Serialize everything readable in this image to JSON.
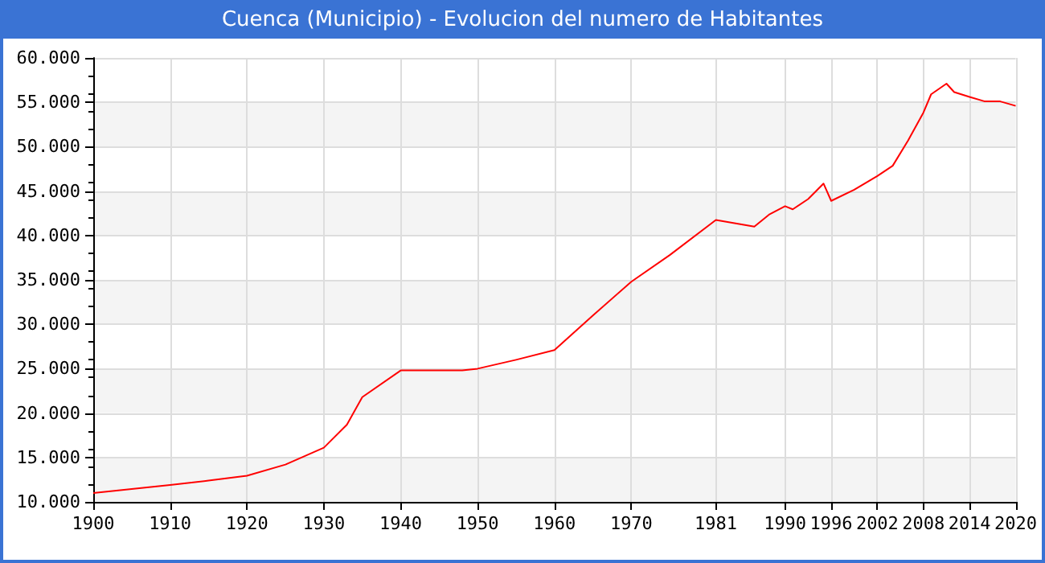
{
  "chart_data": {
    "type": "line",
    "title": "Cuenca (Municipio) - Evolucion del numero de Habitantes",
    "x": [
      1900,
      1905,
      1910,
      1915,
      1920,
      1925,
      1930,
      1933,
      1935,
      1940,
      1948,
      1950,
      1955,
      1960,
      1965,
      1970,
      1975,
      1981,
      1986,
      1988,
      1990,
      1991,
      1993,
      1995,
      1996,
      1999,
      2002,
      2004,
      2006,
      2008,
      2009,
      2011,
      2012,
      2014,
      2016,
      2018,
      2020
    ],
    "series": [
      {
        "color": "#ff0000",
        "values": [
          11000,
          11450,
          11900,
          12400,
          12950,
          14200,
          16100,
          18700,
          21800,
          24800,
          24800,
          25000,
          26000,
          27100,
          31000,
          34800,
          37800,
          41750,
          41000,
          42400,
          43300,
          42950,
          44100,
          45850,
          43900,
          45150,
          46700,
          47850,
          50700,
          53850,
          55900,
          57100,
          56150,
          55600,
          55100,
          55100,
          54600
        ]
      }
    ],
    "xlim": [
      1900,
      2020
    ],
    "xticks": [
      1900,
      1910,
      1920,
      1930,
      1940,
      1950,
      1960,
      1970,
      1981,
      1990,
      1996,
      2002,
      2008,
      2014,
      2020
    ],
    "ylim": [
      10000,
      60000
    ],
    "yticks": [
      {
        "value": 10000,
        "label": "10.000"
      },
      {
        "value": 15000,
        "label": "15.000"
      },
      {
        "value": 20000,
        "label": "20.000"
      },
      {
        "value": 25000,
        "label": "25.000"
      },
      {
        "value": 30000,
        "label": "30.000"
      },
      {
        "value": 35000,
        "label": "35.000"
      },
      {
        "value": 40000,
        "label": "40.000"
      },
      {
        "value": 45000,
        "label": "45.000"
      },
      {
        "value": 50000,
        "label": "50.000"
      },
      {
        "value": 55000,
        "label": "55.000"
      },
      {
        "value": 60000,
        "label": "60.000"
      }
    ],
    "grid": true,
    "marker": "none",
    "line_style": "solid"
  }
}
